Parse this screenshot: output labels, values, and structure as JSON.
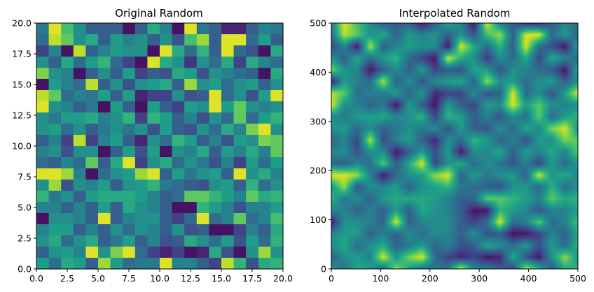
{
  "chart_data": [
    {
      "type": "heatmap",
      "title": "Original Random",
      "xlabel": "",
      "ylabel": "",
      "xlim": [
        0,
        20
      ],
      "ylim": [
        0,
        20
      ],
      "xticks": [
        0.0,
        2.5,
        5.0,
        7.5,
        10.0,
        12.5,
        15.0,
        17.5,
        20.0
      ],
      "yticks": [
        0.0,
        2.5,
        5.0,
        7.5,
        10.0,
        12.5,
        15.0,
        17.5,
        20.0
      ],
      "xtick_labels": [
        "0.0",
        "2.5",
        "5.0",
        "7.5",
        "10.0",
        "12.5",
        "15.0",
        "17.5",
        "20.0"
      ],
      "ytick_labels": [
        "0.0",
        "2.5",
        "5.0",
        "7.5",
        "10.0",
        "12.5",
        "15.0",
        "17.5",
        "20.0"
      ],
      "colormap": "viridis",
      "value_range": [
        0,
        1
      ],
      "grid": false,
      "rows_top_to_bottom": [
        [
          0.4,
          0.95,
          0.7,
          0.5,
          0.3,
          0.3,
          0.3,
          0.05,
          0.3,
          0.6,
          0.45,
          0.05,
          0.95,
          0.4,
          0.3,
          0.1,
          0.1,
          0.3,
          0.45,
          0.4
        ],
        [
          0.35,
          0.9,
          0.75,
          0.5,
          0.6,
          0.3,
          0.55,
          0.45,
          0.5,
          0.3,
          0.5,
          0.25,
          0.7,
          0.85,
          0.3,
          0.95,
          0.95,
          0.35,
          0.55,
          0.3
        ],
        [
          0.2,
          0.45,
          0.05,
          0.9,
          0.3,
          0.45,
          0.55,
          0.5,
          0.5,
          0.05,
          0.95,
          0.6,
          0.35,
          0.65,
          0.3,
          0.95,
          0.35,
          0.25,
          0.05,
          0.6
        ],
        [
          0.5,
          0.3,
          0.6,
          0.35,
          0.55,
          0.65,
          0.35,
          0.2,
          0.05,
          0.95,
          0.6,
          0.5,
          0.15,
          0.5,
          0.35,
          0.6,
          0.2,
          0.6,
          0.45,
          0.35
        ],
        [
          0.8,
          0.5,
          0.45,
          0.05,
          0.3,
          0.5,
          0.3,
          0.55,
          0.2,
          0.3,
          0.25,
          0.6,
          0.55,
          0.25,
          0.5,
          0.45,
          0.35,
          0.3,
          0.05,
          0.6
        ],
        [
          0.05,
          0.55,
          0.45,
          0.35,
          0.9,
          0.3,
          0.5,
          0.25,
          0.5,
          0.55,
          0.6,
          0.3,
          0.85,
          0.5,
          0.55,
          0.35,
          0.5,
          0.55,
          0.3,
          0.5
        ],
        [
          0.9,
          0.75,
          0.35,
          0.45,
          0.4,
          0.55,
          0.3,
          0.55,
          0.1,
          0.2,
          0.2,
          0.5,
          0.25,
          0.3,
          0.95,
          0.35,
          0.5,
          0.25,
          0.55,
          0.95
        ],
        [
          0.95,
          0.5,
          0.45,
          0.3,
          0.4,
          0.05,
          0.55,
          0.3,
          0.05,
          0.55,
          0.3,
          0.2,
          0.55,
          0.5,
          0.95,
          0.55,
          0.75,
          0.5,
          0.45,
          0.5
        ],
        [
          0.5,
          0.4,
          0.55,
          0.55,
          0.6,
          0.45,
          0.5,
          0.65,
          0.2,
          0.65,
          0.55,
          0.3,
          0.45,
          0.25,
          0.5,
          0.35,
          0.75,
          0.35,
          0.55,
          0.65
        ],
        [
          0.5,
          0.55,
          0.35,
          0.5,
          0.3,
          0.4,
          0.5,
          0.4,
          0.5,
          0.25,
          0.55,
          0.3,
          0.25,
          0.5,
          0.35,
          0.6,
          0.45,
          0.8,
          0.95,
          0.5
        ],
        [
          0.3,
          0.45,
          0.2,
          0.9,
          0.2,
          0.45,
          0.55,
          0.3,
          0.1,
          0.5,
          0.35,
          0.65,
          0.55,
          0.3,
          0.45,
          0.25,
          0.55,
          0.5,
          0.8,
          0.75
        ],
        [
          0.45,
          0.5,
          0.25,
          0.5,
          0.5,
          0.05,
          0.3,
          0.55,
          0.25,
          0.55,
          0.05,
          0.5,
          0.45,
          0.6,
          0.3,
          0.55,
          0.45,
          0.6,
          0.45,
          0.75
        ],
        [
          0.35,
          0.3,
          0.45,
          0.35,
          0.75,
          0.3,
          0.6,
          0.95,
          0.2,
          0.5,
          0.6,
          0.35,
          0.5,
          0.4,
          0.25,
          0.45,
          0.2,
          0.55,
          0.35,
          0.55
        ],
        [
          0.95,
          0.95,
          0.85,
          0.45,
          0.05,
          0.35,
          0.5,
          0.55,
          0.85,
          0.95,
          0.3,
          0.55,
          0.4,
          0.5,
          0.55,
          0.3,
          0.95,
          0.5,
          0.6,
          0.45
        ],
        [
          0.5,
          0.85,
          0.25,
          0.5,
          0.45,
          0.55,
          0.3,
          0.5,
          0.55,
          0.65,
          0.4,
          0.35,
          0.3,
          0.25,
          0.5,
          0.55,
          0.3,
          0.65,
          0.35,
          0.5
        ],
        [
          0.65,
          0.4,
          0.5,
          0.3,
          0.55,
          0.6,
          0.6,
          0.6,
          0.55,
          0.45,
          0.3,
          0.35,
          0.75,
          0.75,
          0.65,
          0.55,
          0.45,
          0.75,
          0.6,
          0.65
        ],
        [
          0.45,
          0.45,
          0.3,
          0.45,
          0.3,
          0.55,
          0.3,
          0.6,
          0.5,
          0.45,
          0.3,
          0.05,
          0.05,
          0.65,
          0.55,
          0.45,
          0.25,
          0.45,
          0.45,
          0.55
        ],
        [
          0.05,
          0.5,
          0.5,
          0.45,
          0.3,
          0.95,
          0.3,
          0.45,
          0.5,
          0.5,
          0.3,
          0.2,
          0.35,
          0.95,
          0.35,
          0.45,
          0.75,
          0.35,
          0.45,
          0.7
        ],
        [
          0.45,
          0.55,
          0.55,
          0.3,
          0.45,
          0.3,
          0.5,
          0.35,
          0.5,
          0.45,
          0.3,
          0.5,
          0.25,
          0.3,
          0.05,
          0.05,
          0.2,
          0.45,
          0.3,
          0.6
        ],
        [
          0.5,
          0.6,
          0.35,
          0.5,
          0.6,
          0.3,
          0.4,
          0.55,
          0.3,
          0.45,
          0.25,
          0.3,
          0.6,
          0.5,
          0.35,
          0.55,
          0.25,
          0.55,
          0.35,
          0.65
        ],
        [
          0.3,
          0.5,
          0.55,
          0.45,
          0.95,
          0.5,
          0.8,
          0.95,
          0.35,
          0.2,
          0.1,
          0.2,
          0.05,
          0.1,
          0.6,
          0.25,
          0.05,
          0.5,
          0.85,
          0.5
        ],
        [
          0.55,
          0.35,
          0.6,
          0.55,
          0.3,
          0.85,
          0.55,
          0.35,
          0.4,
          0.4,
          0.95,
          0.45,
          0.45,
          0.3,
          0.2,
          0.9,
          0.65,
          0.25,
          0.6,
          0.65
        ]
      ]
    },
    {
      "type": "heatmap",
      "title": "Interpolated Random",
      "xlabel": "",
      "ylabel": "",
      "xlim": [
        0,
        500
      ],
      "ylim": [
        0,
        500
      ],
      "xticks": [
        0,
        100,
        200,
        300,
        400,
        500
      ],
      "yticks": [
        0,
        100,
        200,
        300,
        400,
        500
      ],
      "xtick_labels": [
        "0",
        "100",
        "200",
        "300",
        "400",
        "500"
      ],
      "ytick_labels": [
        "0",
        "100",
        "200",
        "300",
        "400",
        "500"
      ],
      "colormap": "viridis",
      "interpolation": "linear",
      "source": "Original Random",
      "grid": false
    }
  ]
}
